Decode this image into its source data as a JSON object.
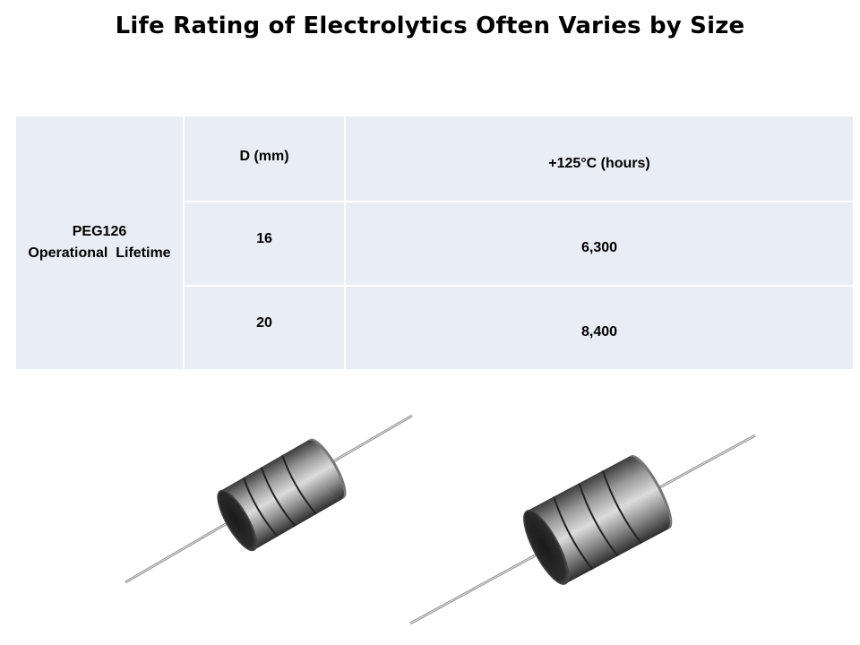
{
  "title": "Life Rating of Electrolytics Often Varies by Size",
  "table": {
    "row_label_line1": "PEG126",
    "row_label_line2": "Operational  Lifetime",
    "col_d": "D (mm)",
    "col_hours": "+125°C (hours)",
    "rows": [
      {
        "d": "16",
        "hours": "6,300"
      },
      {
        "d": "20",
        "hours": "8,400"
      }
    ]
  },
  "images": [
    {
      "name": "capacitor-16mm-image"
    },
    {
      "name": "capacitor-20mm-image"
    }
  ]
}
